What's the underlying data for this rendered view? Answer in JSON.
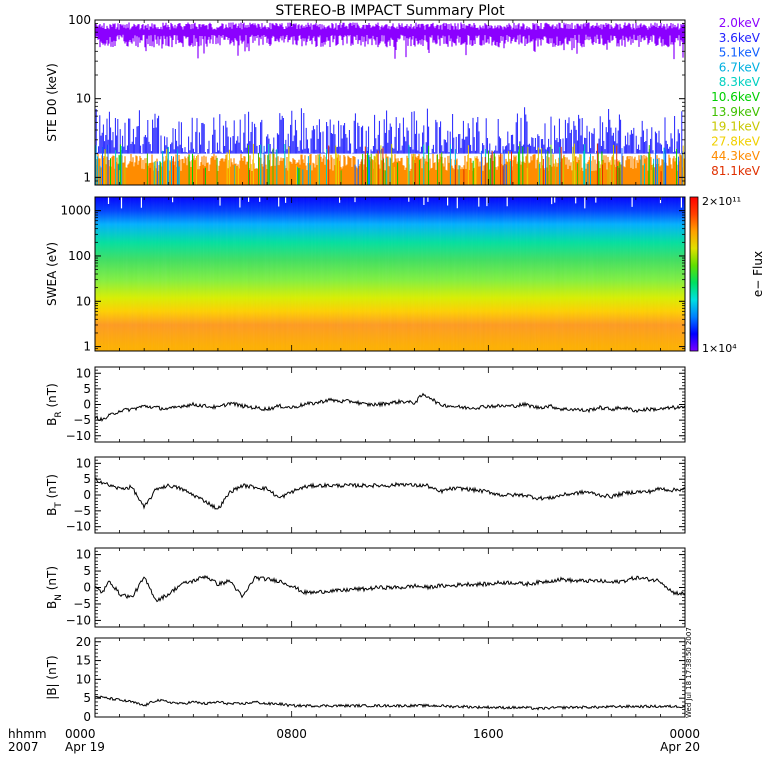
{
  "title": "STEREO-B IMPACT Summary Plot",
  "footer": {
    "row1_label": "hhmm",
    "row2_label": "2007",
    "ticks": [
      "0000",
      "0800",
      "1600",
      "0000"
    ],
    "dates": [
      "Apr 19",
      "",
      "",
      "Apr 20"
    ]
  },
  "side_stamp": "Wed Jul 18 17:38:50 2007",
  "colorbar": {
    "label": "e− Flux",
    "top_label": "2×10¹¹",
    "bottom_label": "1×10⁴",
    "colors": [
      "#7c00ff",
      "#0000ff",
      "#0080ff",
      "#00e0e0",
      "#00e060",
      "#60e000",
      "#e0e000",
      "#ffa000",
      "#ff4000",
      "#ff0000"
    ]
  },
  "chart_data": [
    {
      "type": "line",
      "panel": "ste",
      "ylabel": "STE D0 (keV)",
      "yscale": "log",
      "ylim": [
        0.8,
        100
      ],
      "yticks": [
        1,
        10,
        100
      ],
      "ytick_labels": [
        "1",
        "10",
        "100"
      ],
      "series": [
        {
          "name": "2.0keV",
          "color": "#8b00ff",
          "level": 70,
          "spread": 18
        },
        {
          "name": "3.6keV",
          "color": "#2020ff",
          "level": 4.5,
          "spread": 2.5
        },
        {
          "name": "5.1keV",
          "color": "#1060ff"
        },
        {
          "name": "6.7keV",
          "color": "#00b0e0"
        },
        {
          "name": "8.3keV",
          "color": "#00d0c0"
        },
        {
          "name": "10.6keV",
          "color": "#00d000"
        },
        {
          "name": "13.9keV",
          "color": "#40c000"
        },
        {
          "name": "19.1keV",
          "color": "#c8c800"
        },
        {
          "name": "27.8keV",
          "color": "#f0d000"
        },
        {
          "name": "44.3keV",
          "color": "#ff8c00",
          "level": 1.6,
          "spread": 0.4
        },
        {
          "name": "81.1keV",
          "color": "#e03000"
        }
      ]
    },
    {
      "type": "heatmap",
      "panel": "swea",
      "ylabel": "SWEA (eV)",
      "yscale": "log",
      "ylim": [
        0.8,
        2000
      ],
      "yticks": [
        1,
        10,
        100,
        1000
      ],
      "ytick_labels": [
        "1",
        "10",
        "100",
        "1000"
      ],
      "color_by_energy": [
        {
          "energy": 1,
          "color": "#ffb000"
        },
        {
          "energy": 3,
          "color": "#ff9a20"
        },
        {
          "energy": 6,
          "color": "#ffd000"
        },
        {
          "energy": 12,
          "color": "#d8f000"
        },
        {
          "energy": 30,
          "color": "#80f040"
        },
        {
          "energy": 80,
          "color": "#40e060"
        },
        {
          "energy": 200,
          "color": "#00e0a0"
        },
        {
          "energy": 500,
          "color": "#00b0ff"
        },
        {
          "energy": 1000,
          "color": "#0040ff"
        },
        {
          "energy": 2000,
          "color": "#0000ff"
        }
      ]
    },
    {
      "type": "line",
      "panel": "br",
      "ylabel": "B_R (nT)",
      "ylim": [
        -12,
        12
      ],
      "yticks": [
        -10,
        -5,
        0,
        5,
        10
      ],
      "ytick_labels": [
        "−10",
        "−5",
        "0",
        "5",
        "10"
      ],
      "x_hours": [
        0,
        0.3,
        0.6,
        1,
        1.5,
        2,
        2.5,
        3,
        3.5,
        4,
        4.5,
        5,
        5.5,
        6,
        6.5,
        7,
        7.5,
        8,
        8.5,
        9,
        9.5,
        10,
        10.5,
        11,
        11.5,
        12,
        12.5,
        13,
        13.3,
        13.6,
        14,
        14.5,
        15,
        15.5,
        16,
        16.5,
        17,
        17.5,
        18,
        18.5,
        19,
        19.5,
        20,
        20.5,
        21,
        21.5,
        22,
        22.5,
        23,
        23.5,
        24
      ],
      "values": [
        -4,
        -5,
        -3.5,
        -2,
        -1.5,
        -0.5,
        -1,
        -1.5,
        -0.5,
        0,
        -0.5,
        -1,
        0.5,
        -0.5,
        -1,
        -1.5,
        -0.5,
        -1,
        0,
        0.5,
        1.5,
        1,
        1,
        0,
        0,
        0.5,
        1,
        0.5,
        3,
        2.5,
        0,
        -0.5,
        -1,
        -1,
        -0.5,
        -0.5,
        -0.5,
        0,
        -1,
        -0.5,
        -1.5,
        -1.5,
        -2,
        -1,
        -1.5,
        -1,
        -2,
        -1.5,
        -1.5,
        -1,
        -1
      ]
    },
    {
      "type": "line",
      "panel": "bt",
      "ylabel": "B_T (nT)",
      "ylim": [
        -12,
        12
      ],
      "yticks": [
        -10,
        -5,
        0,
        5,
        10
      ],
      "ytick_labels": [
        "−10",
        "−5",
        "0",
        "5",
        "10"
      ],
      "x_hours": [
        0,
        0.3,
        0.6,
        1,
        1.5,
        2,
        2.5,
        3,
        3.5,
        4,
        4.5,
        5,
        5.5,
        6,
        6.5,
        7,
        7.5,
        8,
        8.5,
        9,
        9.5,
        10,
        10.5,
        11,
        11.5,
        12,
        12.5,
        13,
        13.5,
        14,
        14.5,
        15,
        15.5,
        16,
        16.5,
        17,
        17.5,
        18,
        18.5,
        19,
        19.5,
        20,
        20.5,
        21,
        21.5,
        22,
        22.5,
        23,
        23.5,
        24
      ],
      "values": [
        5,
        4,
        3,
        2,
        2.5,
        -4,
        2,
        3,
        2,
        0,
        -2,
        -4.5,
        1,
        3,
        2.5,
        2,
        -1,
        1,
        2.5,
        3,
        3,
        3,
        3,
        3,
        3,
        3,
        3.5,
        3,
        3,
        1,
        2,
        2,
        1.5,
        1,
        0,
        0,
        0,
        -1,
        -1,
        0,
        0.5,
        1,
        0,
        -0.5,
        0.5,
        1,
        1,
        2,
        1.5,
        2
      ]
    },
    {
      "type": "line",
      "panel": "bn",
      "ylabel": "B_N (nT)",
      "ylim": [
        -12,
        12
      ],
      "yticks": [
        -10,
        -5,
        0,
        5,
        10
      ],
      "ytick_labels": [
        "−10",
        "−5",
        "0",
        "5",
        "10"
      ],
      "x_hours": [
        0,
        0.3,
        0.6,
        1,
        1.5,
        2,
        2.5,
        3,
        3.5,
        4,
        4.5,
        5,
        5.5,
        6,
        6.5,
        7,
        7.5,
        8,
        8.5,
        9,
        9.5,
        10,
        10.5,
        11,
        11.5,
        12,
        12.5,
        13,
        13.5,
        14,
        14.5,
        15,
        15.5,
        16,
        16.5,
        17,
        17.5,
        18,
        18.5,
        19,
        19.5,
        20,
        20.5,
        21,
        21.5,
        22,
        22.5,
        23,
        23.5,
        24
      ],
      "values": [
        0,
        -1.5,
        2,
        -2,
        -3,
        3,
        -4,
        -2,
        1,
        2,
        3.5,
        1,
        2,
        -3,
        3,
        2.5,
        2,
        0.5,
        -1.5,
        -1.5,
        -1,
        -1,
        -0.5,
        -0.5,
        0,
        0,
        0,
        0.5,
        0,
        0.5,
        0.5,
        1,
        1,
        1,
        1.5,
        1.5,
        1,
        1.5,
        2,
        2.5,
        2,
        2,
        2,
        1.5,
        2,
        3,
        2.5,
        2,
        -1.5,
        -2
      ]
    },
    {
      "type": "line",
      "panel": "bmag",
      "ylabel": "|B| (nT)",
      "ylim": [
        0,
        21
      ],
      "yticks": [
        0,
        5,
        10,
        15,
        20
      ],
      "ytick_labels": [
        "0",
        "5",
        "10",
        "15",
        "20"
      ],
      "x_hours": [
        0,
        0.5,
        1,
        1.5,
        2,
        2.5,
        3,
        3.5,
        4,
        4.5,
        5,
        5.5,
        6,
        6.5,
        7,
        7.5,
        8,
        8.5,
        9,
        9.5,
        10,
        10.5,
        11,
        11.5,
        12,
        12.5,
        13,
        13.5,
        14,
        14.5,
        15,
        15.5,
        16,
        16.5,
        17,
        17.5,
        18,
        18.5,
        19,
        19.5,
        20,
        20.5,
        21,
        21.5,
        22,
        22.5,
        23,
        23.5,
        24
      ],
      "values": [
        5.5,
        5,
        4.5,
        4,
        3,
        4.5,
        4,
        3.5,
        4,
        3.5,
        4,
        3.5,
        3.5,
        4,
        3.5,
        3.5,
        3,
        3,
        3,
        3,
        3,
        3,
        3,
        3,
        3,
        3,
        3,
        3,
        3,
        2.8,
        2.8,
        2.6,
        2.6,
        2.5,
        2.5,
        2.5,
        2.2,
        2.4,
        2.5,
        2.6,
        2.6,
        2.6,
        2.7,
        2.8,
        2.8,
        2.8,
        2.8,
        2.8,
        2.8
      ]
    }
  ]
}
